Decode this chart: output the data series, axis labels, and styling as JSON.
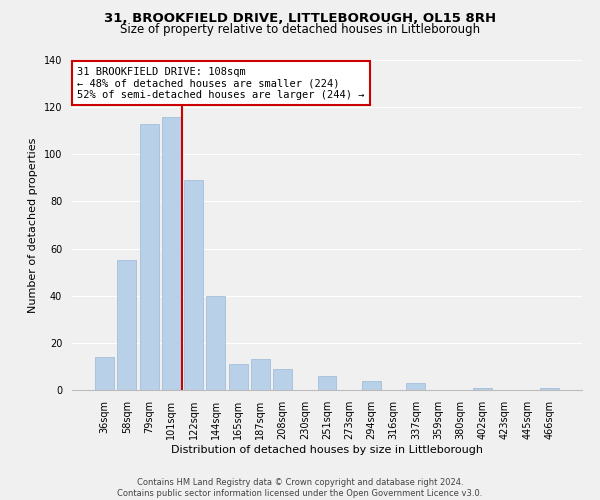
{
  "title": "31, BROOKFIELD DRIVE, LITTLEBOROUGH, OL15 8RH",
  "subtitle": "Size of property relative to detached houses in Littleborough",
  "xlabel": "Distribution of detached houses by size in Littleborough",
  "ylabel": "Number of detached properties",
  "bar_labels": [
    "36sqm",
    "58sqm",
    "79sqm",
    "101sqm",
    "122sqm",
    "144sqm",
    "165sqm",
    "187sqm",
    "208sqm",
    "230sqm",
    "251sqm",
    "273sqm",
    "294sqm",
    "316sqm",
    "337sqm",
    "359sqm",
    "380sqm",
    "402sqm",
    "423sqm",
    "445sqm",
    "466sqm"
  ],
  "bar_values": [
    14,
    55,
    113,
    116,
    89,
    40,
    11,
    13,
    9,
    0,
    6,
    0,
    4,
    0,
    3,
    0,
    0,
    1,
    0,
    0,
    1
  ],
  "bar_color": "#b8d0e8",
  "bar_edge_color": "#9ab8d8",
  "vline_x_index": 3.5,
  "vline_color": "#cc0000",
  "annotation_line1": "31 BROOKFIELD DRIVE: 108sqm",
  "annotation_line2": "← 48% of detached houses are smaller (224)",
  "annotation_line3": "52% of semi-detached houses are larger (244) →",
  "annotation_box_edgecolor": "#cc0000",
  "annotation_box_facecolor": "#ffffff",
  "ylim": [
    0,
    140
  ],
  "yticks": [
    0,
    20,
    40,
    60,
    80,
    100,
    120,
    140
  ],
  "footer_line1": "Contains HM Land Registry data © Crown copyright and database right 2024.",
  "footer_line2": "Contains public sector information licensed under the Open Government Licence v3.0.",
  "bg_color": "#f0f0f0",
  "title_fontsize": 9.5,
  "subtitle_fontsize": 8.5,
  "axis_label_fontsize": 8,
  "tick_fontsize": 7,
  "annotation_fontsize": 7.5,
  "footer_fontsize": 6
}
